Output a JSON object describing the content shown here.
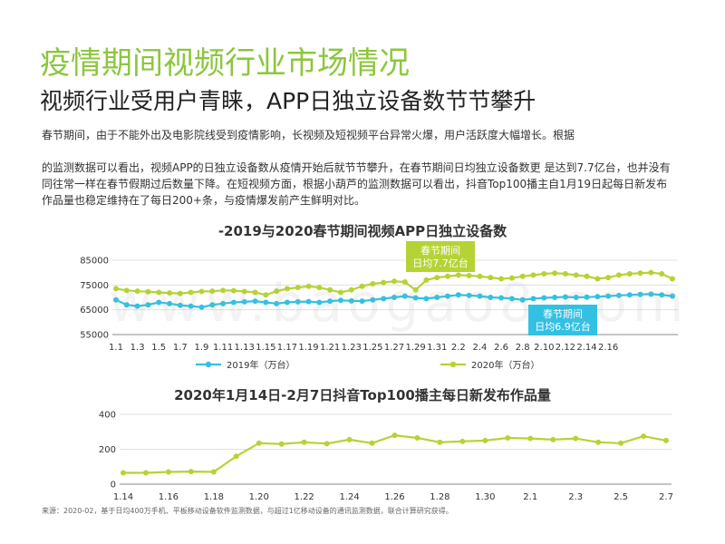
{
  "header": {
    "title": "疫情期间视频行业市场情况",
    "subtitle": "视频行业受用户青睐，APP日独立设备数节节攀升"
  },
  "body": {
    "para1": "春节期间，由于不能外出及电影院线受到疫情影响，长视频及短视频平台异常火爆，用户活跃度大幅增长。根据",
    "para2": "的监测数据可以看出，视频APP的日独立设备数从疫情开始后就节节攀升，在春节期间日均独立设备数更 是达到7.7亿台，也并没有同往常一样在春节假期过后数量下降。在短视频方面，根据小葫芦的监测数据可以看出，抖音Top100播主自1月19日起每日新发布作品量也稳定维持在了每日200+条，与疫情爆发前产生鲜明对比。"
  },
  "colors": {
    "title_green": "#8cc63e",
    "series_2019": "#33c1e3",
    "series_2020": "#b5d334"
  },
  "watermark": "www.baogao8.com",
  "source": "来源：2020-02，基于日均400万手机、平板移动设备软件监测数据，与超过1亿移动设备的通讯监测数据，联合计算研究获得。",
  "chart_data": [
    {
      "type": "line",
      "title": "-2019与2020春节期间视频APP日独立设备数",
      "x": [
        "1.1",
        "1.2",
        "1.3",
        "1.4",
        "1.5",
        "1.6",
        "1.7",
        "1.8",
        "1.9",
        "1.10",
        "1.11",
        "1.12",
        "1.13",
        "1.14",
        "1.15",
        "1.16",
        "1.17",
        "1.18",
        "1.19",
        "1.20",
        "1.21",
        "1.22",
        "1.23",
        "1.24",
        "1.25",
        "1.26",
        "1.27",
        "1.28",
        "1.29",
        "1.30",
        "1.31",
        "2.1",
        "2.2",
        "2.3",
        "2.4",
        "2.5",
        "2.6",
        "2.7",
        "2.8",
        "2.9",
        "2.10",
        "2.11",
        "2.12",
        "2.13",
        "2.14",
        "2.15",
        "2.16",
        "2.17",
        "2.18",
        "2.19",
        "2.20",
        "2.21",
        "2.22"
      ],
      "tick_labels": [
        "1.1",
        "1.3",
        "1.5",
        "1.7",
        "1.9",
        "1.11",
        "1.13",
        "1.15",
        "1.17",
        "1.19",
        "1.21",
        "1.23",
        "1.25",
        "1.27",
        "1.29",
        "1.31",
        "2.2",
        "2.4",
        "2.6",
        "2.8",
        "2.10",
        "2.12",
        "2.14",
        "2.16"
      ],
      "yticks": [
        55000,
        65000,
        75000,
        85000
      ],
      "ylim": [
        55000,
        85000
      ],
      "legend_position": "bottom",
      "series": [
        {
          "name": "2019年（万台）",
          "color": "#33c1e3",
          "values": [
            69000,
            67000,
            66500,
            67000,
            68000,
            67500,
            66800,
            66500,
            66000,
            67000,
            67500,
            68000,
            68200,
            68500,
            68000,
            67500,
            68000,
            68200,
            68300,
            68000,
            68500,
            68800,
            68600,
            68500,
            69000,
            69500,
            70000,
            70500,
            69800,
            69500,
            70000,
            70500,
            71000,
            70800,
            70500,
            70000,
            69800,
            69500,
            69000,
            69500,
            69800,
            70000,
            70200,
            70000,
            70100,
            70300,
            70500,
            70800,
            71000,
            71200,
            71300,
            71000,
            70500
          ]
        },
        {
          "name": "2020年（万台）",
          "color": "#b5d334",
          "values": [
            73500,
            72800,
            72500,
            72300,
            72000,
            71800,
            71600,
            72000,
            72400,
            72500,
            72800,
            72700,
            72400,
            72000,
            71000,
            72500,
            73500,
            74000,
            74500,
            74000,
            73000,
            72000,
            73000,
            74500,
            75500,
            76000,
            76500,
            76200,
            73000,
            77000,
            78000,
            78500,
            79000,
            78800,
            78500,
            78000,
            77500,
            77800,
            78500,
            79000,
            79500,
            79800,
            79500,
            79000,
            78500,
            77500,
            78000,
            79000,
            79500,
            79800,
            80000,
            79500,
            77500
          ]
        }
      ],
      "annotations": [
        {
          "text_line1": "春节期间",
          "text_line2": "日均7.7亿台",
          "color": "#b5d334"
        },
        {
          "text_line1": "春节期间",
          "text_line2": "日均6.9亿台",
          "color": "#33c1e3"
        }
      ]
    },
    {
      "type": "line",
      "title": "2020年1月14日-2月7日抖音Top100播主每日新发布作品量",
      "x": [
        "1.14",
        "1.15",
        "1.16",
        "1.17",
        "1.18",
        "1.19",
        "1.20",
        "1.21",
        "1.22",
        "1.23",
        "1.24",
        "1.25",
        "1.26",
        "1.27",
        "1.28",
        "1.29",
        "1.30",
        "1.31",
        "2.1",
        "2.2",
        "2.3",
        "2.4",
        "2.5",
        "2.6",
        "2.7"
      ],
      "tick_labels": [
        "1.14",
        "1.16",
        "1.18",
        "1.20",
        "1.22",
        "1.24",
        "1.26",
        "1.28",
        "1.30",
        "2.1",
        "2.3",
        "2.5",
        "2.7"
      ],
      "yticks": [
        0,
        200,
        400
      ],
      "ylim": [
        0,
        400
      ],
      "series": [
        {
          "name": "",
          "color": "#b5d334",
          "values": [
            65,
            65,
            70,
            72,
            70,
            160,
            235,
            230,
            240,
            232,
            255,
            235,
            280,
            265,
            240,
            245,
            250,
            265,
            262,
            255,
            262,
            240,
            235,
            275,
            250
          ]
        }
      ]
    }
  ]
}
